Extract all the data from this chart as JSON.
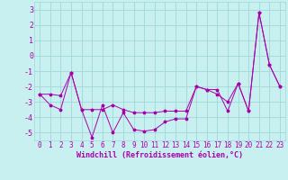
{
  "xlabel": "Windchill (Refroidissement éolien,°C)",
  "background_color": "#c8f0f0",
  "grid_color": "#a0d8d8",
  "line_color": "#aa00aa",
  "xlim": [
    -0.5,
    23.5
  ],
  "ylim": [
    -5.5,
    3.5
  ],
  "yticks": [
    -5,
    -4,
    -3,
    -2,
    -1,
    0,
    1,
    2,
    3
  ],
  "xticks": [
    0,
    1,
    2,
    3,
    4,
    5,
    6,
    7,
    8,
    9,
    10,
    11,
    12,
    13,
    14,
    15,
    16,
    17,
    18,
    19,
    20,
    21,
    22,
    23
  ],
  "line1_x": [
    0,
    1,
    2,
    3,
    4,
    5,
    6,
    7,
    8,
    9,
    10,
    11,
    12,
    13,
    14,
    15,
    16,
    17,
    18,
    19,
    20,
    21,
    22,
    23
  ],
  "line1_y": [
    -2.5,
    -3.2,
    -3.5,
    -1.1,
    -3.5,
    -5.3,
    -3.2,
    -5.0,
    -3.7,
    -4.8,
    -4.9,
    -4.8,
    -4.3,
    -4.1,
    -4.1,
    -2.0,
    -2.2,
    -2.5,
    -3.0,
    -1.8,
    -3.6,
    2.8,
    -0.6,
    -2.0
  ],
  "line2_x": [
    0,
    1,
    2,
    3,
    4,
    5,
    6,
    7,
    8,
    9,
    10,
    11,
    12,
    13,
    14,
    15,
    16,
    17,
    18,
    19,
    20,
    21,
    22,
    23
  ],
  "line2_y": [
    -2.5,
    -2.5,
    -2.6,
    -1.1,
    -3.5,
    -3.5,
    -3.5,
    -3.2,
    -3.5,
    -3.7,
    -3.7,
    -3.7,
    -3.6,
    -3.6,
    -3.6,
    -2.0,
    -2.2,
    -2.2,
    -3.6,
    -1.8,
    -3.6,
    2.8,
    -0.6,
    -2.0
  ],
  "fontsize_xlabel": 6,
  "fontsize_yticks": 6,
  "fontsize_xticks": 5.5
}
